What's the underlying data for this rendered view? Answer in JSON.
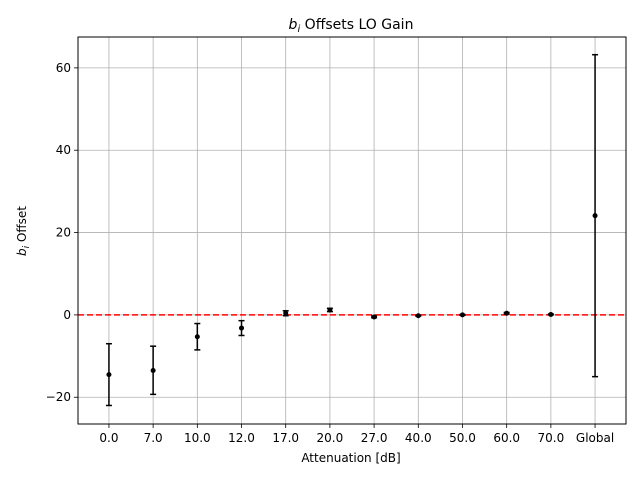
{
  "chart_data": {
    "type": "scatter",
    "title_math": "b",
    "title_sub": "i",
    "title_rest": " Offsets LO Gain",
    "xlabel": "Attenuation [dB]",
    "ylabel_math": "b",
    "ylabel_sub": "i",
    "ylabel_rest": " Offset",
    "categories": [
      "0.0",
      "7.0",
      "10.0",
      "12.0",
      "17.0",
      "20.0",
      "27.0",
      "40.0",
      "50.0",
      "60.0",
      "70.0",
      "Global"
    ],
    "yticks": [
      -20,
      0,
      20,
      40,
      60
    ],
    "ytick_labels": [
      "−20",
      "0",
      "20",
      "40",
      "60"
    ],
    "ylim": [
      -26.5,
      67.5
    ],
    "grid": true,
    "reference_line": {
      "y": 0,
      "color": "#ff0000",
      "style": "dashed"
    },
    "marker_color": "#000000",
    "series": [
      {
        "values": [
          -14.5,
          -13.5,
          -5.3,
          -3.2,
          0.4,
          1.2,
          -0.5,
          -0.2,
          0.0,
          0.4,
          0.1,
          24.1
        ],
        "err_low": [
          -22.0,
          -19.3,
          -8.5,
          -5.0,
          -0.2,
          0.8,
          -0.7,
          -0.3,
          -0.1,
          0.2,
          0.0,
          -15.0
        ],
        "err_high": [
          -7.0,
          -7.6,
          -2.1,
          -1.4,
          1.0,
          1.6,
          -0.3,
          -0.1,
          0.1,
          0.6,
          0.2,
          63.2
        ]
      }
    ]
  }
}
